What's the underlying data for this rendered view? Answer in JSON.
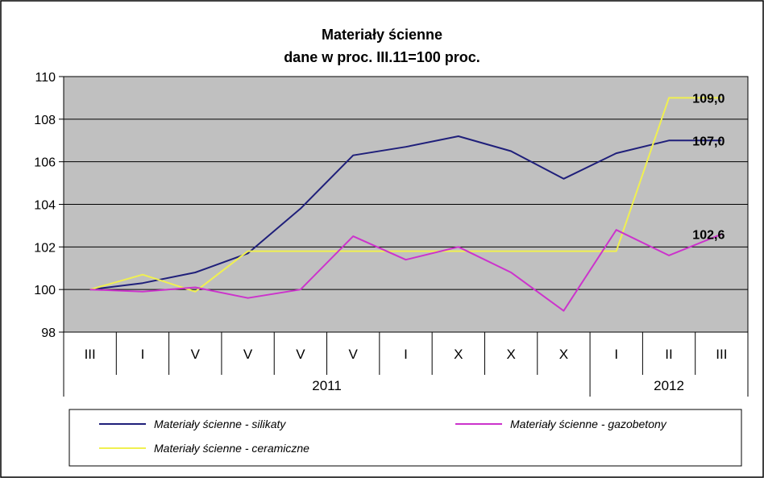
{
  "chart_data": {
    "type": "line",
    "title": "Materiały ścienne",
    "subtitle": "dane w proc. III.11=100 proc.",
    "ylim": [
      98,
      110
    ],
    "yticks": [
      98,
      100,
      102,
      104,
      106,
      108,
      110
    ],
    "categories": [
      "III",
      "I",
      "V",
      "V",
      "V",
      "V",
      "I",
      "X",
      "X",
      "X",
      "I",
      "II",
      "III"
    ],
    "year_groups": [
      {
        "label": "2011",
        "count": 10
      },
      {
        "label": "2012",
        "count": 3
      }
    ],
    "grid": true,
    "legend_position": "bottom",
    "series": [
      {
        "name": "Materiały ścienne - silikaty",
        "color": "#1f1f7a",
        "values": [
          100,
          100.3,
          100.8,
          101.7,
          103.8,
          106.3,
          106.7,
          107.2,
          106.5,
          105.2,
          106.4,
          107.0,
          107.0
        ],
        "end_label": "107,0"
      },
      {
        "name": "Materiały ścienne - gazobetony",
        "color": "#cc33cc",
        "values": [
          100,
          99.9,
          100.1,
          99.6,
          100.0,
          102.5,
          101.4,
          102.0,
          100.8,
          99.0,
          102.8,
          101.6,
          102.6
        ],
        "end_label": "102,6"
      },
      {
        "name": "Materiały ścienne - ceramiczne",
        "color": "#f0f050",
        "values": [
          100,
          100.7,
          99.9,
          101.8,
          101.8,
          101.8,
          101.8,
          101.8,
          101.8,
          101.8,
          101.8,
          109.0,
          109.0
        ],
        "end_label": "109,0"
      }
    ]
  }
}
